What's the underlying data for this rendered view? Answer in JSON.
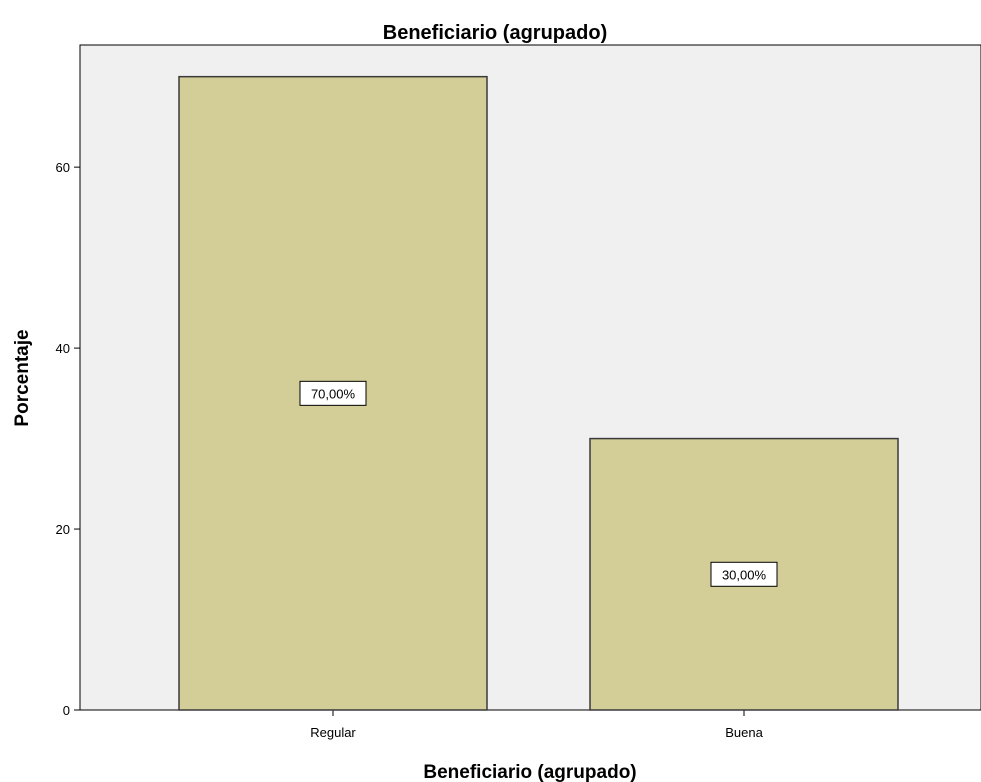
{
  "chart_data": {
    "type": "bar",
    "title": "Beneficiario (agrupado)",
    "xlabel": "Beneficiario (agrupado)",
    "ylabel": "Porcentaje",
    "categories": [
      "Regular",
      "Buena"
    ],
    "values": [
      70,
      30
    ],
    "data_labels": [
      "70,00%",
      "30,00%"
    ],
    "ylim": [
      0,
      73.5
    ],
    "yticks": [
      0,
      20,
      40,
      60
    ],
    "ytick_labels": [
      "0",
      "20",
      "40",
      "60"
    ],
    "grid": false,
    "legend": false,
    "colors": {
      "bar_fill": "#d3cd98",
      "bar_stroke": "#3a3a3a",
      "plot_background": "#f0f0f0",
      "axis": "#000000",
      "label_box_fill": "#ffffff",
      "label_box_stroke": "#000000"
    }
  }
}
